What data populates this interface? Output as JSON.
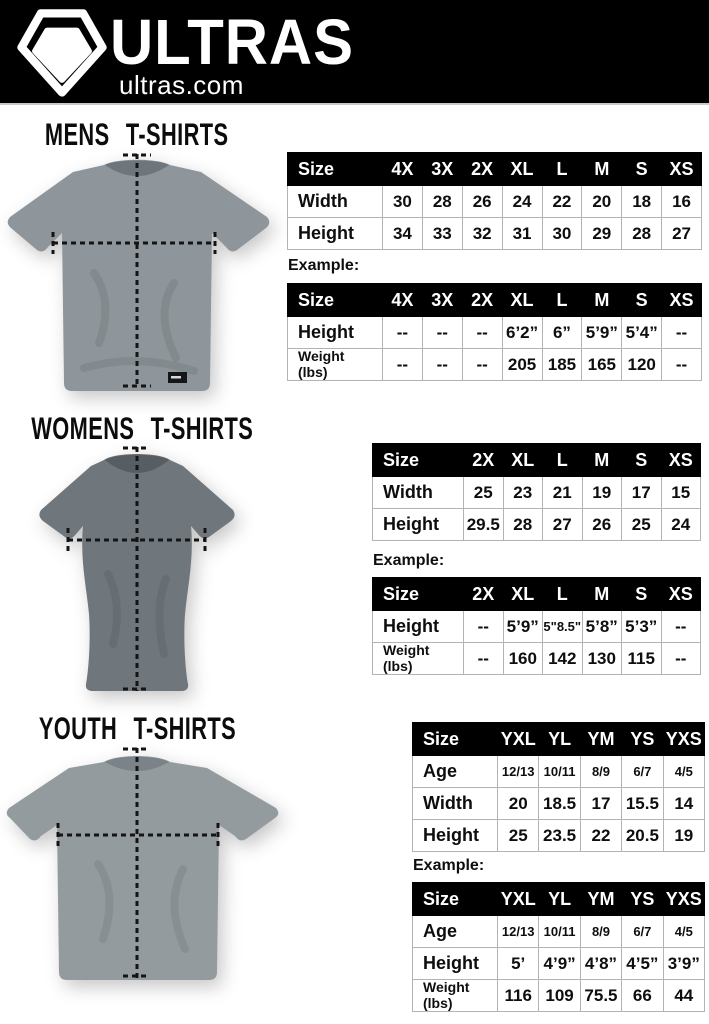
{
  "header": {
    "brand": "ULTRAS",
    "site": "ultras.com",
    "bar_color": "#000000",
    "logo_icon": "pentagon-badge-icon"
  },
  "sections": [
    {
      "id": "mens",
      "title": "MENS T-SHIRTS",
      "example_label": "Example:",
      "shirt_color": "#8e969b",
      "collar_color": "#6e757b",
      "size_table": {
        "header": [
          "Size",
          "4X",
          "3X",
          "2X",
          "XL",
          "L",
          "M",
          "S",
          "XS"
        ],
        "rows": [
          {
            "label": "Width",
            "values": [
              "30",
              "28",
              "26",
              "24",
              "22",
              "20",
              "18",
              "16"
            ]
          },
          {
            "label": "Height",
            "values": [
              "34",
              "33",
              "32",
              "31",
              "30",
              "29",
              "28",
              "27"
            ]
          }
        ]
      },
      "example_table": {
        "header": [
          "Size",
          "4X",
          "3X",
          "2X",
          "XL",
          "L",
          "M",
          "S",
          "XS"
        ],
        "rows": [
          {
            "label": "Height",
            "values": [
              "--",
              "--",
              "--",
              "6’2”",
              "6”",
              "5’9”",
              "5’4”",
              "--"
            ]
          },
          {
            "label": "Weight\n(lbs)",
            "values": [
              "--",
              "--",
              "--",
              "205",
              "185",
              "165",
              "120",
              "--"
            ]
          }
        ]
      }
    },
    {
      "id": "womens",
      "title": "WOMENS T-SHIRTS",
      "example_label": "Example:",
      "shirt_color": "#6f777d",
      "collar_color": "#565d63",
      "size_table": {
        "header": [
          "Size",
          "2X",
          "XL",
          "L",
          "M",
          "S",
          "XS"
        ],
        "rows": [
          {
            "label": "Width",
            "values": [
              "25",
              "23",
              "21",
              "19",
              "17",
              "15"
            ]
          },
          {
            "label": "Height",
            "values": [
              "29.5",
              "28",
              "27",
              "26",
              "25",
              "24"
            ]
          }
        ]
      },
      "example_table": {
        "header": [
          "Size",
          "2X",
          "XL",
          "L",
          "M",
          "S",
          "XS"
        ],
        "rows": [
          {
            "label": "Height",
            "values": [
              "--",
              "5’9”",
              "5\"8.5\"",
              "5’8”",
              "5’3”",
              "--"
            ]
          },
          {
            "label": "Weight\n(lbs)",
            "values": [
              "--",
              "160",
              "142",
              "130",
              "115",
              "--"
            ]
          }
        ]
      }
    },
    {
      "id": "youth",
      "title": "YOUTH T-SHIRTS",
      "example_label": "Example:",
      "shirt_color": "#949b9f",
      "collar_color": "#7c8388",
      "size_table": {
        "header": [
          "Size",
          "YXL",
          "YL",
          "YM",
          "YS",
          "YXS"
        ],
        "rows": [
          {
            "label": "Age",
            "values": [
              "12/13",
              "10/11",
              "8/9",
              "6/7",
              "4/5"
            ]
          },
          {
            "label": "Width",
            "values": [
              "20",
              "18.5",
              "17",
              "15.5",
              "14"
            ]
          },
          {
            "label": "Height",
            "values": [
              "25",
              "23.5",
              "22",
              "20.5",
              "19"
            ]
          }
        ]
      },
      "example_table": {
        "header": [
          "Size",
          "YXL",
          "YL",
          "YM",
          "YS",
          "YXS"
        ],
        "rows": [
          {
            "label": "Age",
            "values": [
              "12/13",
              "10/11",
              "8/9",
              "6/7",
              "4/5"
            ]
          },
          {
            "label": "Height",
            "values": [
              "5’",
              "4’9”",
              "4’8”",
              "4’5”",
              "3’9”"
            ]
          },
          {
            "label": "Weight\n(lbs)",
            "values": [
              "116",
              "109",
              "75.5",
              "66",
              "44"
            ]
          }
        ]
      }
    }
  ]
}
